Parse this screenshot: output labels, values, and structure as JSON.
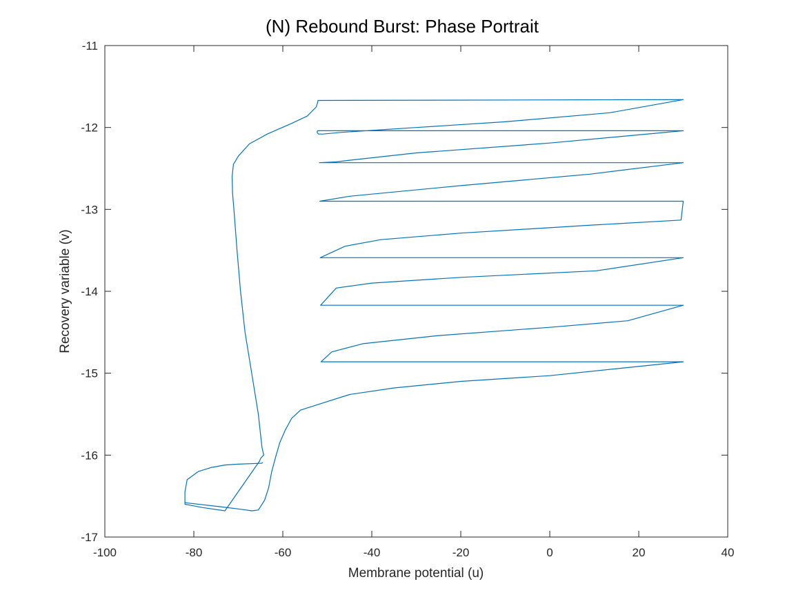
{
  "chart_data": {
    "type": "line",
    "title": "(N) Rebound Burst: Phase Portrait",
    "xlabel": "Membrane potential (u)",
    "ylabel": "Recovery variable (v)",
    "xlim": [
      -100,
      40
    ],
    "ylim": [
      -17,
      -11
    ],
    "xticks": [
      -100,
      -80,
      -60,
      -40,
      -20,
      0,
      20,
      40
    ],
    "yticks": [
      -17,
      -16,
      -15,
      -14,
      -13,
      -12,
      -11
    ],
    "xtick_labels": [
      "-100",
      "-80",
      "-60",
      "-40",
      "-20",
      "0",
      "20",
      "40"
    ],
    "ytick_labels": [
      "-17",
      "-16",
      "-15",
      "-14",
      "-13",
      "-12",
      "-11"
    ],
    "grid": false,
    "series": [
      {
        "color": "#0072BD",
        "x": [
          -64.5,
          -64.8,
          -65.2,
          -70,
          -73,
          -76,
          -79,
          -81.5,
          -82,
          -82,
          -81,
          -78,
          -73,
          -65.2,
          -65,
          -64.5,
          -64.3,
          -64.7,
          -65.5,
          -67,
          -68.5,
          -69.5,
          -70.3,
          -71,
          -71.3,
          -71.4,
          -71.1,
          -70,
          -67.5,
          -63.5,
          -58,
          -54.5,
          -52.5,
          -52.2,
          -52.1,
          30,
          13.5,
          -10,
          -30,
          -47,
          -51,
          -52,
          -52.3,
          -52.2,
          30,
          0,
          -30,
          -45,
          -48,
          -51.8,
          30,
          9,
          -20,
          -45,
          -51.7,
          30,
          30,
          29.5,
          10,
          -20,
          -38,
          -46,
          -51.6,
          30,
          10.5,
          -20,
          -40,
          -48,
          -51.5,
          30,
          17.5,
          0,
          -25,
          -42,
          -49,
          -51.4,
          30,
          0,
          -20,
          -35,
          -45,
          -52,
          -56,
          -58,
          -59.5,
          -60.7,
          -61.6,
          -62.5,
          -63.2,
          -64.1,
          -65.5,
          -67,
          -69.5,
          -74,
          -82,
          -82
        ],
        "y": [
          -16.09,
          -16.1,
          -16.1,
          -16.11,
          -16.12,
          -16.15,
          -16.2,
          -16.3,
          -16.45,
          -16.6,
          -16.61,
          -16.64,
          -16.68,
          -16.07,
          -16.04,
          -16.01,
          -16.0,
          -15.9,
          -15.5,
          -15.0,
          -14.5,
          -14.0,
          -13.5,
          -13.0,
          -12.8,
          -12.6,
          -12.45,
          -12.35,
          -12.2,
          -12.08,
          -11.95,
          -11.86,
          -11.75,
          -11.7,
          -11.67,
          -11.66,
          -11.82,
          -11.93,
          -12.0,
          -12.06,
          -12.08,
          -12.08,
          -12.06,
          -12.04,
          -12.04,
          -12.19,
          -12.31,
          -12.4,
          -12.42,
          -12.43,
          -12.43,
          -12.57,
          -12.71,
          -12.84,
          -12.9,
          -12.9,
          -12.9,
          -13.13,
          -13.19,
          -13.29,
          -13.37,
          -13.45,
          -13.59,
          -13.59,
          -13.75,
          -13.83,
          -13.9,
          -13.96,
          -14.17,
          -14.17,
          -14.36,
          -14.44,
          -14.54,
          -14.64,
          -14.74,
          -14.86,
          -14.86,
          -15.03,
          -15.1,
          -15.18,
          -15.26,
          -15.38,
          -15.45,
          -15.55,
          -15.7,
          -15.85,
          -16.02,
          -16.2,
          -16.4,
          -16.55,
          -16.67,
          -16.68,
          -16.66,
          -16.63,
          -16.58,
          -16.58
        ]
      }
    ]
  }
}
